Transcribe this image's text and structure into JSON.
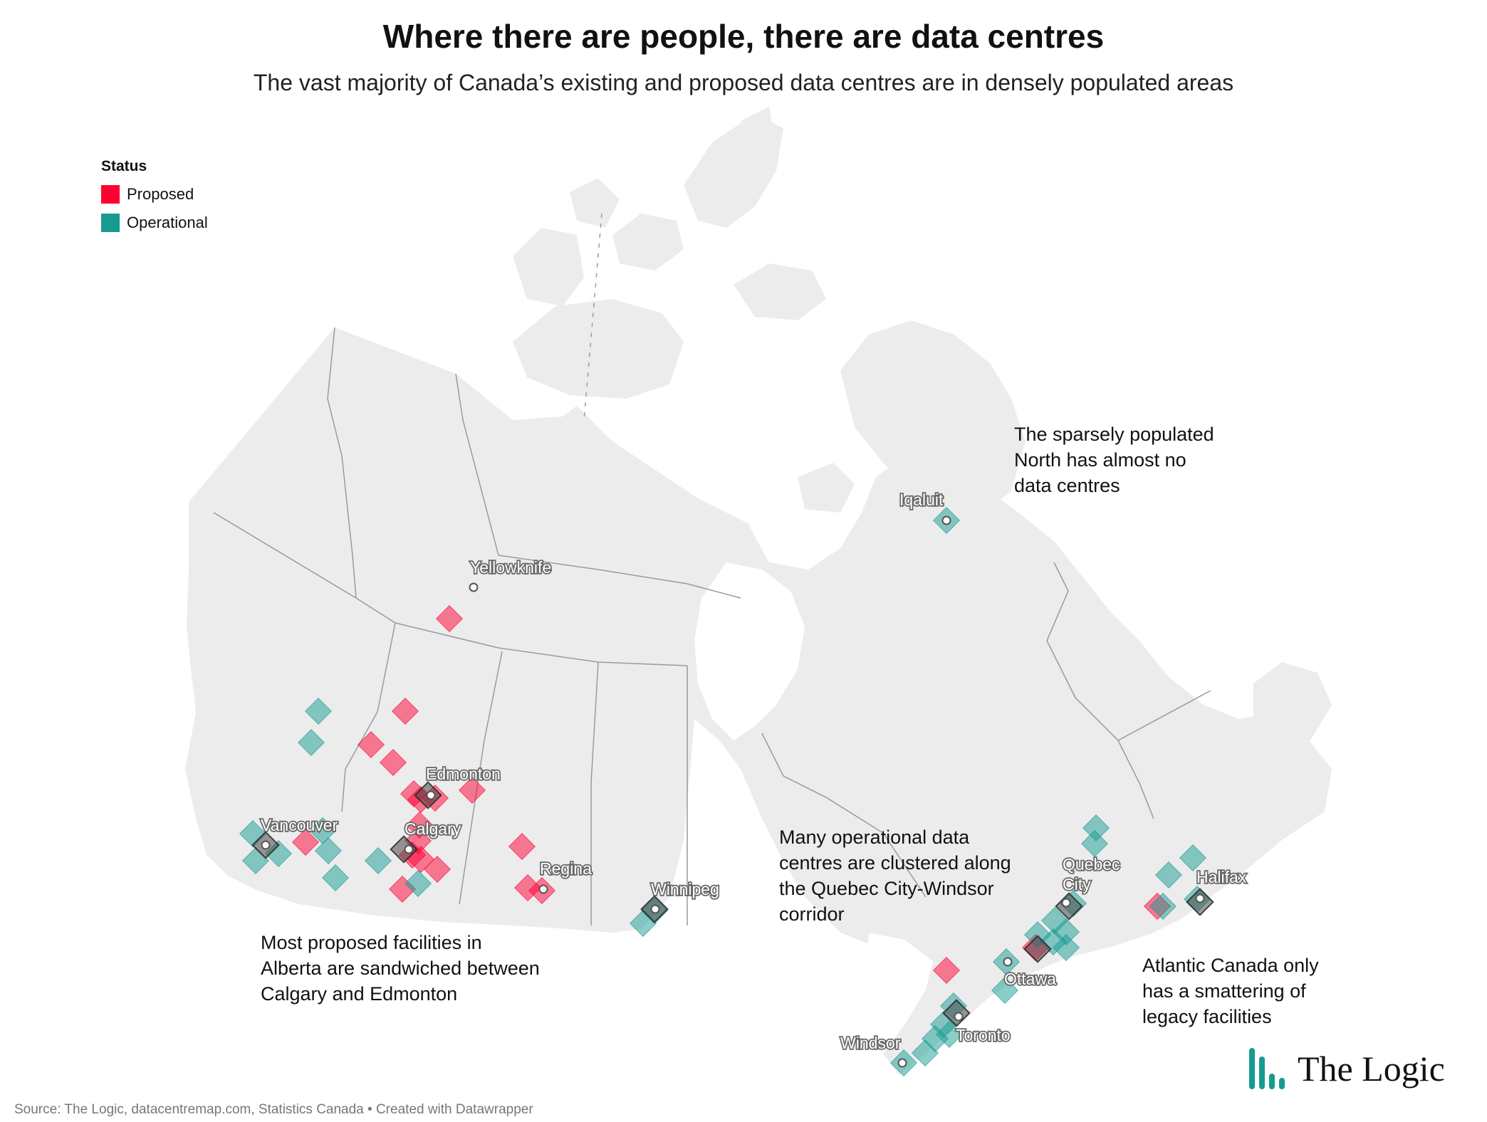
{
  "header": {
    "title": "Where there are people, there are data centres",
    "subtitle": "The vast majority of Canada’s existing and proposed data centres are in densely populated areas"
  },
  "legend": {
    "title": "Status",
    "items": [
      {
        "label": "Proposed",
        "color": "#ff0033"
      },
      {
        "label": "Operational",
        "color": "#179b91"
      }
    ]
  },
  "colors": {
    "land": "#ececec",
    "border": "#9a9a9a",
    "proposed": "#ff0033",
    "operational": "#179b91"
  },
  "cities": [
    {
      "name": "Yellowknife"
    },
    {
      "name": "Iqaluit"
    },
    {
      "name": "Edmonton"
    },
    {
      "name": "Calgary"
    },
    {
      "name": "Vancouver"
    },
    {
      "name": "Regina"
    },
    {
      "name": "Winnipeg"
    },
    {
      "name": "Quebec City"
    },
    {
      "name": "Halifax"
    },
    {
      "name": "Ottawa"
    },
    {
      "name": "Toronto"
    },
    {
      "name": "Windsor"
    }
  ],
  "annotations": {
    "north": "The sparsely populated\nNorth has almost no\ndata centres",
    "alberta": "Most proposed facilities in\nAlberta are sandwiched between\nCalgary and Edmonton",
    "corridor": "Many operational data\ncentres are clustered along\nthe Quebec City-Windsor\ncorridor",
    "atlantic": "Atlantic Canada only\nhas a smattering of\nlegacy facilities"
  },
  "footer": {
    "source": "Source: The Logic, datacentremap.com, Statistics Canada • Created with Datawrapper",
    "brand": "The Logic"
  }
}
